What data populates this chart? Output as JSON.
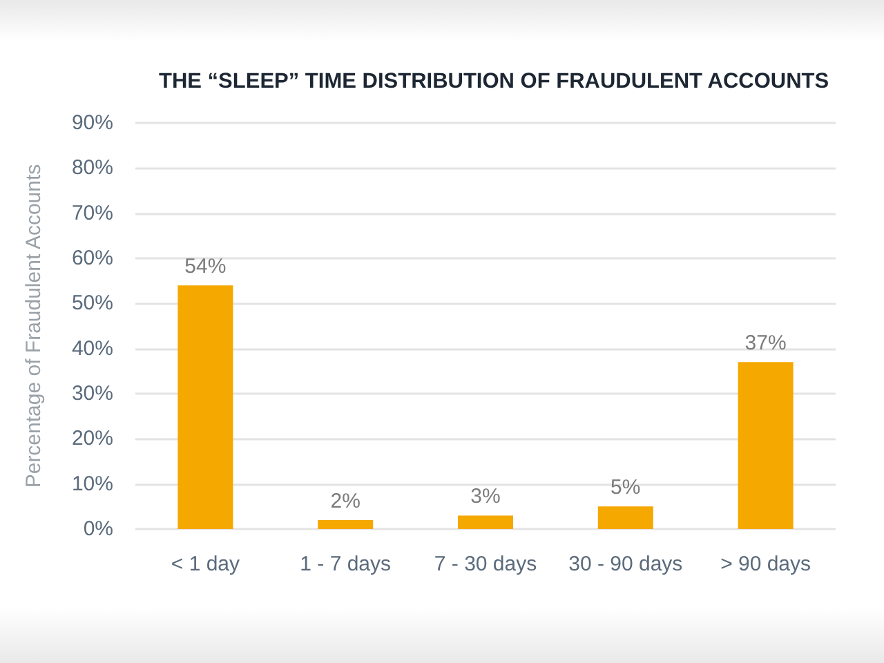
{
  "chart_data": {
    "type": "bar",
    "title": "THE “SLEEP” TIME DISTRIBUTION OF FRAUDULENT ACCOUNTS",
    "ylabel": "Percentage of Fraudulent Accounts",
    "categories": [
      "< 1 day",
      "1 - 7 days",
      "7 - 30 days",
      "30 - 90 days",
      "> 90 days"
    ],
    "values": [
      54,
      2,
      3,
      5,
      37
    ],
    "value_labels": [
      "54%",
      "2%",
      "3%",
      "5%",
      "37%"
    ],
    "color": "#f5a800",
    "ylim": [
      0,
      90
    ],
    "yticks": [
      {
        "value": 0,
        "label": "0%"
      },
      {
        "value": 10,
        "label": "10%"
      },
      {
        "value": 20,
        "label": "20%"
      },
      {
        "value": 30,
        "label": "30%"
      },
      {
        "value": 40,
        "label": "40%"
      },
      {
        "value": 50,
        "label": "50%"
      },
      {
        "value": 60,
        "label": "60%"
      },
      {
        "value": 70,
        "label": "70%"
      },
      {
        "value": 80,
        "label": "80%"
      },
      {
        "value": 90,
        "label": "90%"
      }
    ],
    "grid": "y"
  }
}
